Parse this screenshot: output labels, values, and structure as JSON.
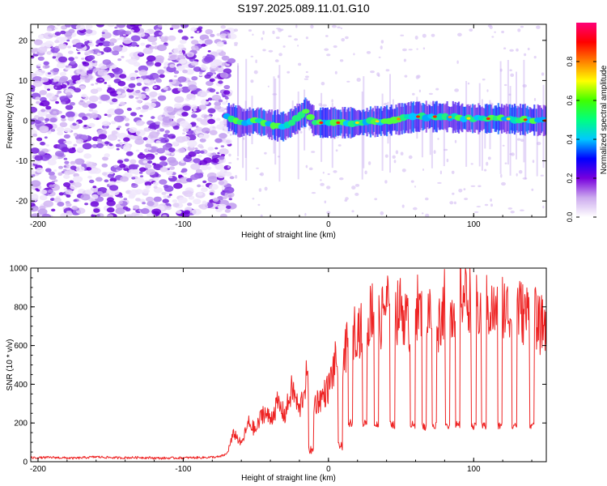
{
  "title": "S197.2025.089.11.01.G10",
  "chart_data": [
    {
      "type": "heatmap",
      "xlabel": "Height of straight line (km)",
      "ylabel": "Frequency (Hz)",
      "xlim": [
        -205,
        150
      ],
      "ylim": [
        -24,
        24
      ],
      "x_ticks": [
        -200,
        -100,
        0,
        100
      ],
      "y_ticks": [
        -20,
        -10,
        0,
        10,
        20
      ],
      "noise_region_x": [
        -205,
        -70
      ],
      "signal_region_x": [
        -70,
        150
      ],
      "signal_track": {
        "x": [
          -70,
          -60,
          -50,
          -40,
          -30,
          -20,
          -15,
          -10,
          0,
          20,
          40,
          60,
          80,
          100,
          120,
          150
        ],
        "freq": [
          1.0,
          -0.5,
          0.0,
          -1.0,
          -1.5,
          1.0,
          2.5,
          -0.5,
          -0.5,
          -0.5,
          0.0,
          1.0,
          1.0,
          0.5,
          0.5,
          0.0
        ]
      },
      "colorbar": {
        "label": "Normalized spectral amplitude",
        "range": [
          0.0,
          1.0
        ],
        "ticks": [
          0.0,
          0.2,
          0.4,
          0.6,
          0.8
        ],
        "tick_labels": [
          "0.0",
          "0.2",
          "0.4",
          "0.6",
          "0.8"
        ],
        "colors": [
          "#ffffff",
          "#ccaaee",
          "#7700dd",
          "#0000ff",
          "#00c8ff",
          "#00ff80",
          "#40ff00",
          "#ffff00",
          "#ff8000",
          "#ff0000",
          "#ff0077"
        ]
      },
      "grid": false
    },
    {
      "type": "line",
      "xlabel": "Height of straight line (km)",
      "ylabel": "SNR (10 * v/v)",
      "xlim": [
        -205,
        150
      ],
      "ylim": [
        0,
        1000
      ],
      "x_ticks": [
        -200,
        -100,
        0,
        100
      ],
      "y_ticks": [
        0,
        200,
        400,
        600,
        800,
        1000
      ],
      "series": [
        {
          "color": "#ee2222",
          "x": [
            -205,
            -190,
            -175,
            -160,
            -145,
            -130,
            -115,
            -100,
            -85,
            -75,
            -70,
            -65,
            -60,
            -55,
            -50,
            -45,
            -40,
            -35,
            -30,
            -25,
            -20,
            -15,
            -10,
            -5,
            0,
            5,
            10,
            15,
            20,
            25,
            30,
            35,
            40,
            45,
            50,
            55,
            60,
            65,
            70,
            75,
            80,
            85,
            90,
            95,
            100,
            105,
            110,
            115,
            120,
            125,
            130,
            135,
            140,
            145,
            150
          ],
          "values": [
            20,
            22,
            18,
            25,
            20,
            22,
            18,
            20,
            22,
            25,
            40,
            150,
            90,
            200,
            160,
            260,
            220,
            300,
            240,
            380,
            260,
            440,
            300,
            330,
            380,
            520,
            520,
            650,
            700,
            650,
            800,
            700,
            840,
            740,
            800,
            700,
            820,
            740,
            760,
            700,
            820,
            760,
            880,
            860,
            820,
            780,
            800,
            760,
            820,
            760,
            800,
            760,
            780,
            700,
            720
          ]
        }
      ],
      "dropouts": [
        {
          "x": -12,
          "value": 60
        },
        {
          "x": 8,
          "value": 80
        },
        {
          "x": 15,
          "value": 200
        },
        {
          "x": 25,
          "value": 200
        },
        {
          "x": 33,
          "value": 190
        },
        {
          "x": 44,
          "value": 190
        },
        {
          "x": 58,
          "value": 190
        },
        {
          "x": 66,
          "value": 180
        },
        {
          "x": 73,
          "value": 190
        },
        {
          "x": 82,
          "value": 180
        },
        {
          "x": 89,
          "value": 190
        },
        {
          "x": 100,
          "value": 180
        },
        {
          "x": 107,
          "value": 185
        },
        {
          "x": 118,
          "value": 185
        },
        {
          "x": 128,
          "value": 190
        },
        {
          "x": 140,
          "value": 190
        }
      ],
      "grid": false
    }
  ]
}
